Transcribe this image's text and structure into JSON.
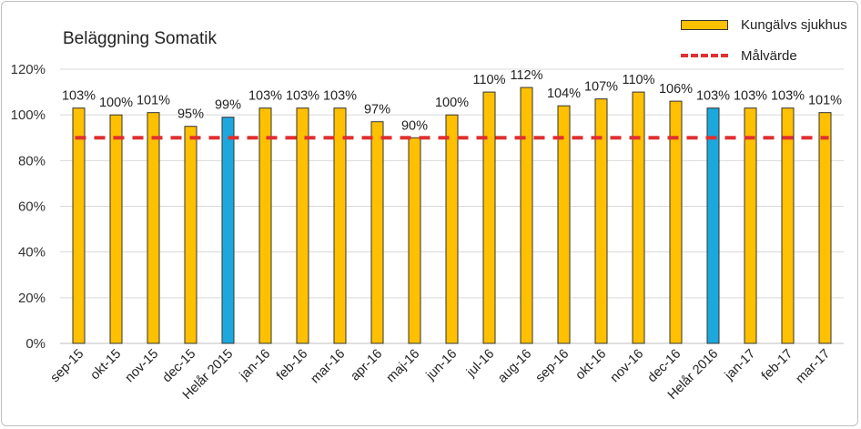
{
  "chart_data": {
    "type": "bar",
    "title": "Beläggning Somatik",
    "categories": [
      "sep-15",
      "okt-15",
      "nov-15",
      "dec-15",
      "Helår 2015",
      "jan-16",
      "feb-16",
      "mar-16",
      "apr-16",
      "maj-16",
      "jun-16",
      "jul-16",
      "aug-16",
      "sep-16",
      "okt-16",
      "nov-16",
      "dec-16",
      "Helår 2016",
      "jan-17",
      "feb-17",
      "mar-17"
    ],
    "series": [
      {
        "name": "Kungälvs sjukhus",
        "values": [
          103,
          100,
          101,
          95,
          99,
          103,
          103,
          103,
          97,
          90,
          100,
          110,
          112,
          104,
          107,
          110,
          106,
          103,
          103,
          103,
          101
        ],
        "labels": [
          "103%",
          "100%",
          "101%",
          "95%",
          "99%",
          "103%",
          "103%",
          "103%",
          "97%",
          "90%",
          "100%",
          "110%",
          "112%",
          "104%",
          "107%",
          "110%",
          "106%",
          "103%",
          "103%",
          "103%",
          "101%"
        ]
      }
    ],
    "highlight_categories": [
      "Helår 2015",
      "Helår 2016"
    ],
    "target": {
      "name": "Målvärde",
      "value": 90
    },
    "y_ticks": [
      "0%",
      "20%",
      "40%",
      "60%",
      "80%",
      "100%",
      "120%"
    ],
    "ylim": [
      0,
      120
    ],
    "colors": {
      "bar": "#FFC000",
      "highlight": "#1CA8DD",
      "target": "#E03030",
      "grid": "#d9d9d9"
    },
    "legend_position": "top-right",
    "xlabel": "",
    "ylabel": ""
  }
}
